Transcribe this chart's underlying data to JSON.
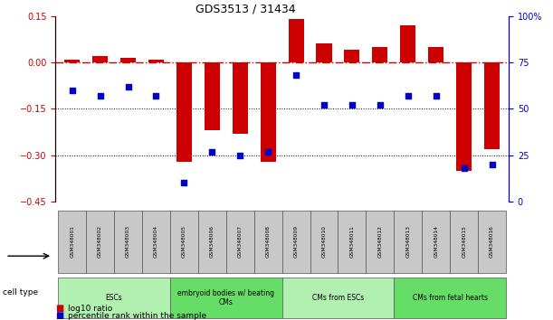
{
  "title": "GDS3513 / 31434",
  "samples": [
    "GSM348001",
    "GSM348002",
    "GSM348003",
    "GSM348004",
    "GSM348005",
    "GSM348006",
    "GSM348007",
    "GSM348008",
    "GSM348009",
    "GSM348010",
    "GSM348011",
    "GSM348012",
    "GSM348013",
    "GSM348014",
    "GSM348015",
    "GSM348016"
  ],
  "log10_ratio": [
    0.01,
    0.02,
    0.015,
    0.01,
    -0.32,
    -0.22,
    -0.23,
    -0.32,
    0.14,
    0.06,
    0.04,
    0.05,
    0.12,
    0.05,
    -0.35,
    -0.28
  ],
  "percentile_rank": [
    60,
    57,
    62,
    57,
    10,
    27,
    25,
    27,
    68,
    52,
    52,
    52,
    57,
    57,
    18,
    20
  ],
  "cell_types": [
    {
      "label": "ESCs",
      "start": 0,
      "end": 4,
      "color": "#b2f0b2"
    },
    {
      "label": "embryoid bodies w/ beating\nCMs",
      "start": 4,
      "end": 8,
      "color": "#66dd66"
    },
    {
      "label": "CMs from ESCs",
      "start": 8,
      "end": 12,
      "color": "#b2f0b2"
    },
    {
      "label": "CMs from fetal hearts",
      "start": 12,
      "end": 16,
      "color": "#66dd66"
    }
  ],
  "bar_color": "#cc0000",
  "dot_color": "#0000cc",
  "left_ylim": [
    -0.45,
    0.15
  ],
  "right_ylim": [
    0,
    100
  ],
  "left_yticks": [
    -0.45,
    -0.3,
    -0.15,
    0,
    0.15
  ],
  "right_yticks": [
    0,
    25,
    50,
    75,
    100
  ],
  "legend_items": [
    {
      "label": "log10 ratio",
      "color": "#cc0000"
    },
    {
      "label": "percentile rank within the sample",
      "color": "#0000cc"
    }
  ],
  "cell_type_label": "cell type"
}
